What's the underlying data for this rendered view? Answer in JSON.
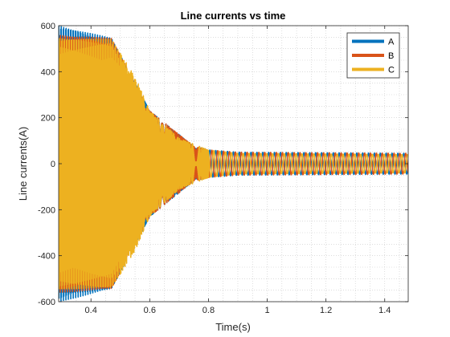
{
  "chart_data": {
    "type": "line",
    "title": "Line currents vs time",
    "xlabel": "Time(s)",
    "ylabel": "Line currents(A)",
    "xlim": [
      0.29,
      1.48
    ],
    "ylim": [
      -600,
      600
    ],
    "xticks": [
      0.4,
      0.6,
      0.8,
      1,
      1.2,
      1.4
    ],
    "xtick_labels": [
      "0.4",
      "0.6",
      "0.8",
      "1",
      "1.2",
      "1.4"
    ],
    "yticks": [
      -600,
      -400,
      -200,
      0,
      200,
      400,
      600
    ],
    "ytick_labels": [
      "-600",
      "-400",
      "-200",
      "0",
      "200",
      "400",
      "600"
    ],
    "grid": "minor-dotted",
    "legend_position": "top-right",
    "series": [
      {
        "name": "A",
        "color": "#0072BD",
        "envelope": [
          [
            0.29,
            600
          ],
          [
            0.47,
            545
          ],
          [
            0.6,
            230
          ],
          [
            0.75,
            75
          ],
          [
            0.8,
            60
          ],
          [
            0.9,
            50
          ],
          [
            1.48,
            45
          ]
        ]
      },
      {
        "name": "B",
        "color": "#D95319",
        "envelope": [
          [
            0.29,
            560
          ],
          [
            0.47,
            545
          ],
          [
            0.6,
            230
          ],
          [
            0.75,
            75
          ],
          [
            0.8,
            60
          ],
          [
            0.9,
            50
          ],
          [
            1.48,
            45
          ]
        ]
      },
      {
        "name": "C",
        "color": "#EDB120",
        "envelope": [
          [
            0.29,
            545
          ],
          [
            0.47,
            540
          ],
          [
            0.55,
            380
          ],
          [
            0.6,
            230
          ],
          [
            0.7,
            110
          ],
          [
            0.8,
            60
          ],
          [
            0.9,
            45
          ],
          [
            1.48,
            40
          ]
        ]
      }
    ],
    "steady_state": {
      "frequency_hz": 50,
      "amplitude": 45
    }
  }
}
